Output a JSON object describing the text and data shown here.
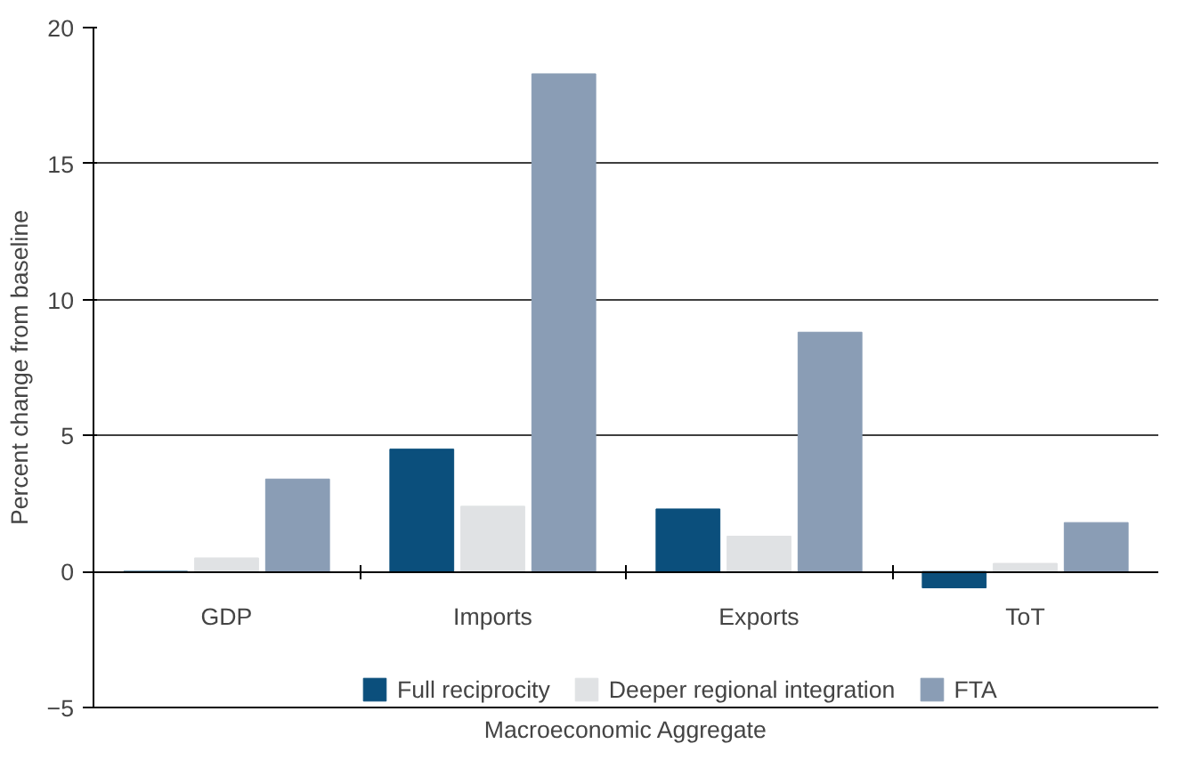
{
  "chart_data": {
    "type": "bar",
    "xlabel": "Macroeconomic Aggregate",
    "ylabel": "Percent change from baseline",
    "categories": [
      "GDP",
      "Imports",
      "Exports",
      "ToT"
    ],
    "series": [
      {
        "name": "Full reciprocity",
        "color": "#0b4f7c",
        "values": [
          0.0,
          4.5,
          2.3,
          -0.6
        ]
      },
      {
        "name": "Deeper regional integration",
        "color": "#e0e2e4",
        "values": [
          0.5,
          2.4,
          1.3,
          0.3
        ]
      },
      {
        "name": "FTA",
        "color": "#8a9db5",
        "values": [
          3.4,
          18.3,
          8.8,
          1.8
        ]
      }
    ],
    "ylim": [
      -5,
      20
    ],
    "yticks": [
      -5,
      0,
      5,
      10,
      15,
      20
    ],
    "grid": "y",
    "legend": "bottom"
  }
}
